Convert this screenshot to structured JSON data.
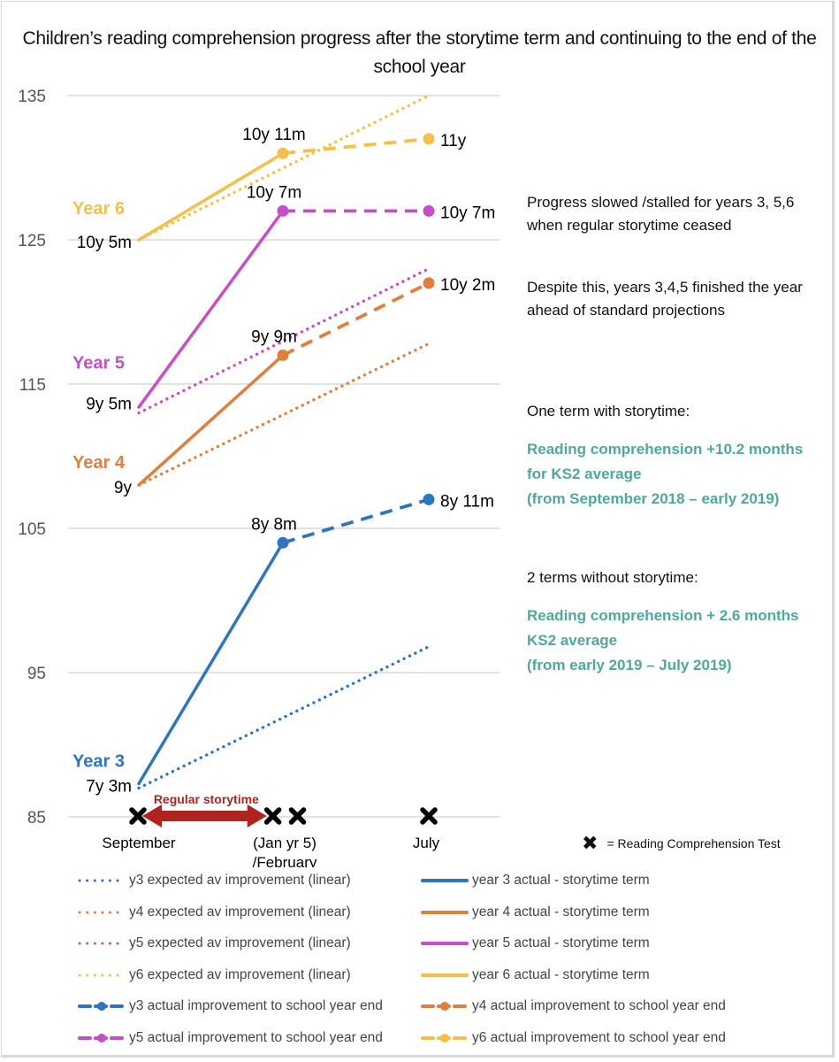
{
  "chart_data": {
    "type": "line",
    "title": "Children’s reading comprehension progress after the storytime term and continuing to the end of the school year",
    "xlabel": "",
    "ylabel": "",
    "ylim": [
      85,
      135
    ],
    "yticks": [
      "135",
      "125",
      "115",
      "105",
      "95",
      "85"
    ],
    "ytick_values": [
      135,
      125,
      115,
      105,
      95,
      85
    ],
    "grid": true,
    "x_categories": [
      "September",
      "(Jan yr 5) /February",
      "July"
    ],
    "x_labels": {
      "september": "September",
      "feb_line1": "(Jan yr 5)",
      "feb_line2": "/February",
      "july": "July"
    },
    "series": [
      {
        "id": "y3_expected",
        "name": "y3 expected av improvement (linear)",
        "style": "dotted",
        "color": "#2e75c0",
        "points": [
          [
            0,
            87
          ],
          [
            2,
            96.8
          ]
        ]
      },
      {
        "id": "y4_expected",
        "name": "y4 expected av improvement (linear)",
        "style": "dotted",
        "color": "#e07f3d",
        "points": [
          [
            0,
            108
          ],
          [
            2,
            117.8
          ]
        ]
      },
      {
        "id": "y5_expected",
        "name": "y5 expected av improvement (linear)",
        "style": "dotted",
        "color": "#c64ec6",
        "points": [
          [
            0,
            113
          ],
          [
            2,
            123
          ]
        ]
      },
      {
        "id": "y6_expected",
        "name": "y6 expected av improvement (linear)",
        "style": "dotted",
        "color": "#f4c04a",
        "points": [
          [
            0,
            125
          ],
          [
            2,
            135
          ]
        ]
      },
      {
        "id": "y3_actual_term",
        "name": "year 3 actual - storytime term",
        "style": "solid",
        "color": "#2e75c0",
        "points": [
          [
            0,
            87.3
          ],
          [
            1,
            104
          ]
        ]
      },
      {
        "id": "y4_actual_term",
        "name": "year 4 actual - storytime term",
        "style": "solid",
        "color": "#e07f3d",
        "points": [
          [
            0,
            108
          ],
          [
            1,
            117
          ]
        ]
      },
      {
        "id": "y5_actual_term",
        "name": "year 5 actual - storytime term",
        "style": "solid",
        "color": "#c64ec6",
        "points": [
          [
            0,
            113.4
          ],
          [
            1,
            127
          ]
        ]
      },
      {
        "id": "y6_actual_term",
        "name": "year 6 actual - storytime term",
        "style": "solid",
        "color": "#f4c04a",
        "points": [
          [
            0,
            125
          ],
          [
            1,
            131
          ]
        ]
      },
      {
        "id": "y3_actual_end",
        "name": "y3 actual improvement to school year end",
        "style": "dashed-marker",
        "color": "#2e75c0",
        "points": [
          [
            1,
            104
          ],
          [
            2,
            107
          ]
        ]
      },
      {
        "id": "y4_actual_end",
        "name": "y4 actual improvement to school year end",
        "style": "dashed-marker",
        "color": "#e07f3d",
        "points": [
          [
            1,
            117
          ],
          [
            2,
            122
          ]
        ]
      },
      {
        "id": "y5_actual_end",
        "name": "y5 actual improvement to school year end",
        "style": "dashed-marker",
        "color": "#c64ec6",
        "points": [
          [
            1,
            127
          ],
          [
            2,
            127
          ]
        ]
      },
      {
        "id": "y6_actual_end",
        "name": "y6 actual improvement to school year end",
        "style": "dashed-marker",
        "color": "#f4c04a",
        "points": [
          [
            1,
            131
          ],
          [
            2,
            132
          ]
        ]
      }
    ],
    "year_labels": [
      {
        "text": "Year 6",
        "color": "#f4c04a",
        "value": 127.2
      },
      {
        "text": "Year 5",
        "color": "#c64ec6",
        "value": 116.5
      },
      {
        "text": "Year 4",
        "color": "#e07f3d",
        "value": 109.6
      },
      {
        "text": "Year 3",
        "color": "#2e75c0",
        "value": 88.9
      }
    ],
    "point_labels": [
      {
        "text": "10y 5m",
        "x": 0,
        "value": 125,
        "anchor": "start-left"
      },
      {
        "text": "9y 5m",
        "x": 0,
        "value": 113.8,
        "anchor": "start-left"
      },
      {
        "text": "9y",
        "x": 0,
        "value": 108,
        "anchor": "start-left"
      },
      {
        "text": "7y 3m",
        "x": 0,
        "value": 87.3,
        "anchor": "start-left"
      },
      {
        "text": "10y 11m",
        "x": 1,
        "value": 131,
        "anchor": "above"
      },
      {
        "text": "10y 7m",
        "x": 1,
        "value": 127,
        "anchor": "above"
      },
      {
        "text": "9y 9m",
        "x": 1,
        "value": 117,
        "anchor": "above"
      },
      {
        "text": "8y 8m",
        "x": 1,
        "value": 104,
        "anchor": "above"
      },
      {
        "text": "11y",
        "x": 2,
        "value": 132,
        "anchor": "right"
      },
      {
        "text": "10y 7m",
        "x": 2,
        "value": 127,
        "anchor": "right"
      },
      {
        "text": "10y 2m",
        "x": 2,
        "value": 122,
        "anchor": "right"
      },
      {
        "text": "8y 11m",
        "x": 2,
        "value": 107,
        "anchor": "right"
      }
    ],
    "test_markers": [
      0,
      0.93,
      1.1,
      2
    ],
    "storytime_span": {
      "label": "Regular storytime",
      "from": 0,
      "to": 0.9,
      "color": "#b0231f"
    }
  },
  "annotations": {
    "note1": "Progress slowed /stalled for years 3, 5,6 when regular storytime ceased",
    "note2": "Despite this, years 3,4,5 finished the year ahead of standard projections",
    "note3": "One term with storytime:",
    "note4_l1": "Reading comprehension +10.2 months",
    "note4_l2": "for KS2 average",
    "note4_l3": "(from September 2018 – early 2019)",
    "note5": "2 terms without storytime:",
    "note6_l1": "Reading comprehension + 2.6 months",
    "note6_l2": "KS2 average",
    "note6_l3": "(from early 2019 – July 2019)",
    "teal_color": "#4fa89a"
  },
  "key": {
    "marker_icon": "x-cross-icon",
    "glyph": "✖",
    "text": "=  Reading Comprehension Test"
  }
}
